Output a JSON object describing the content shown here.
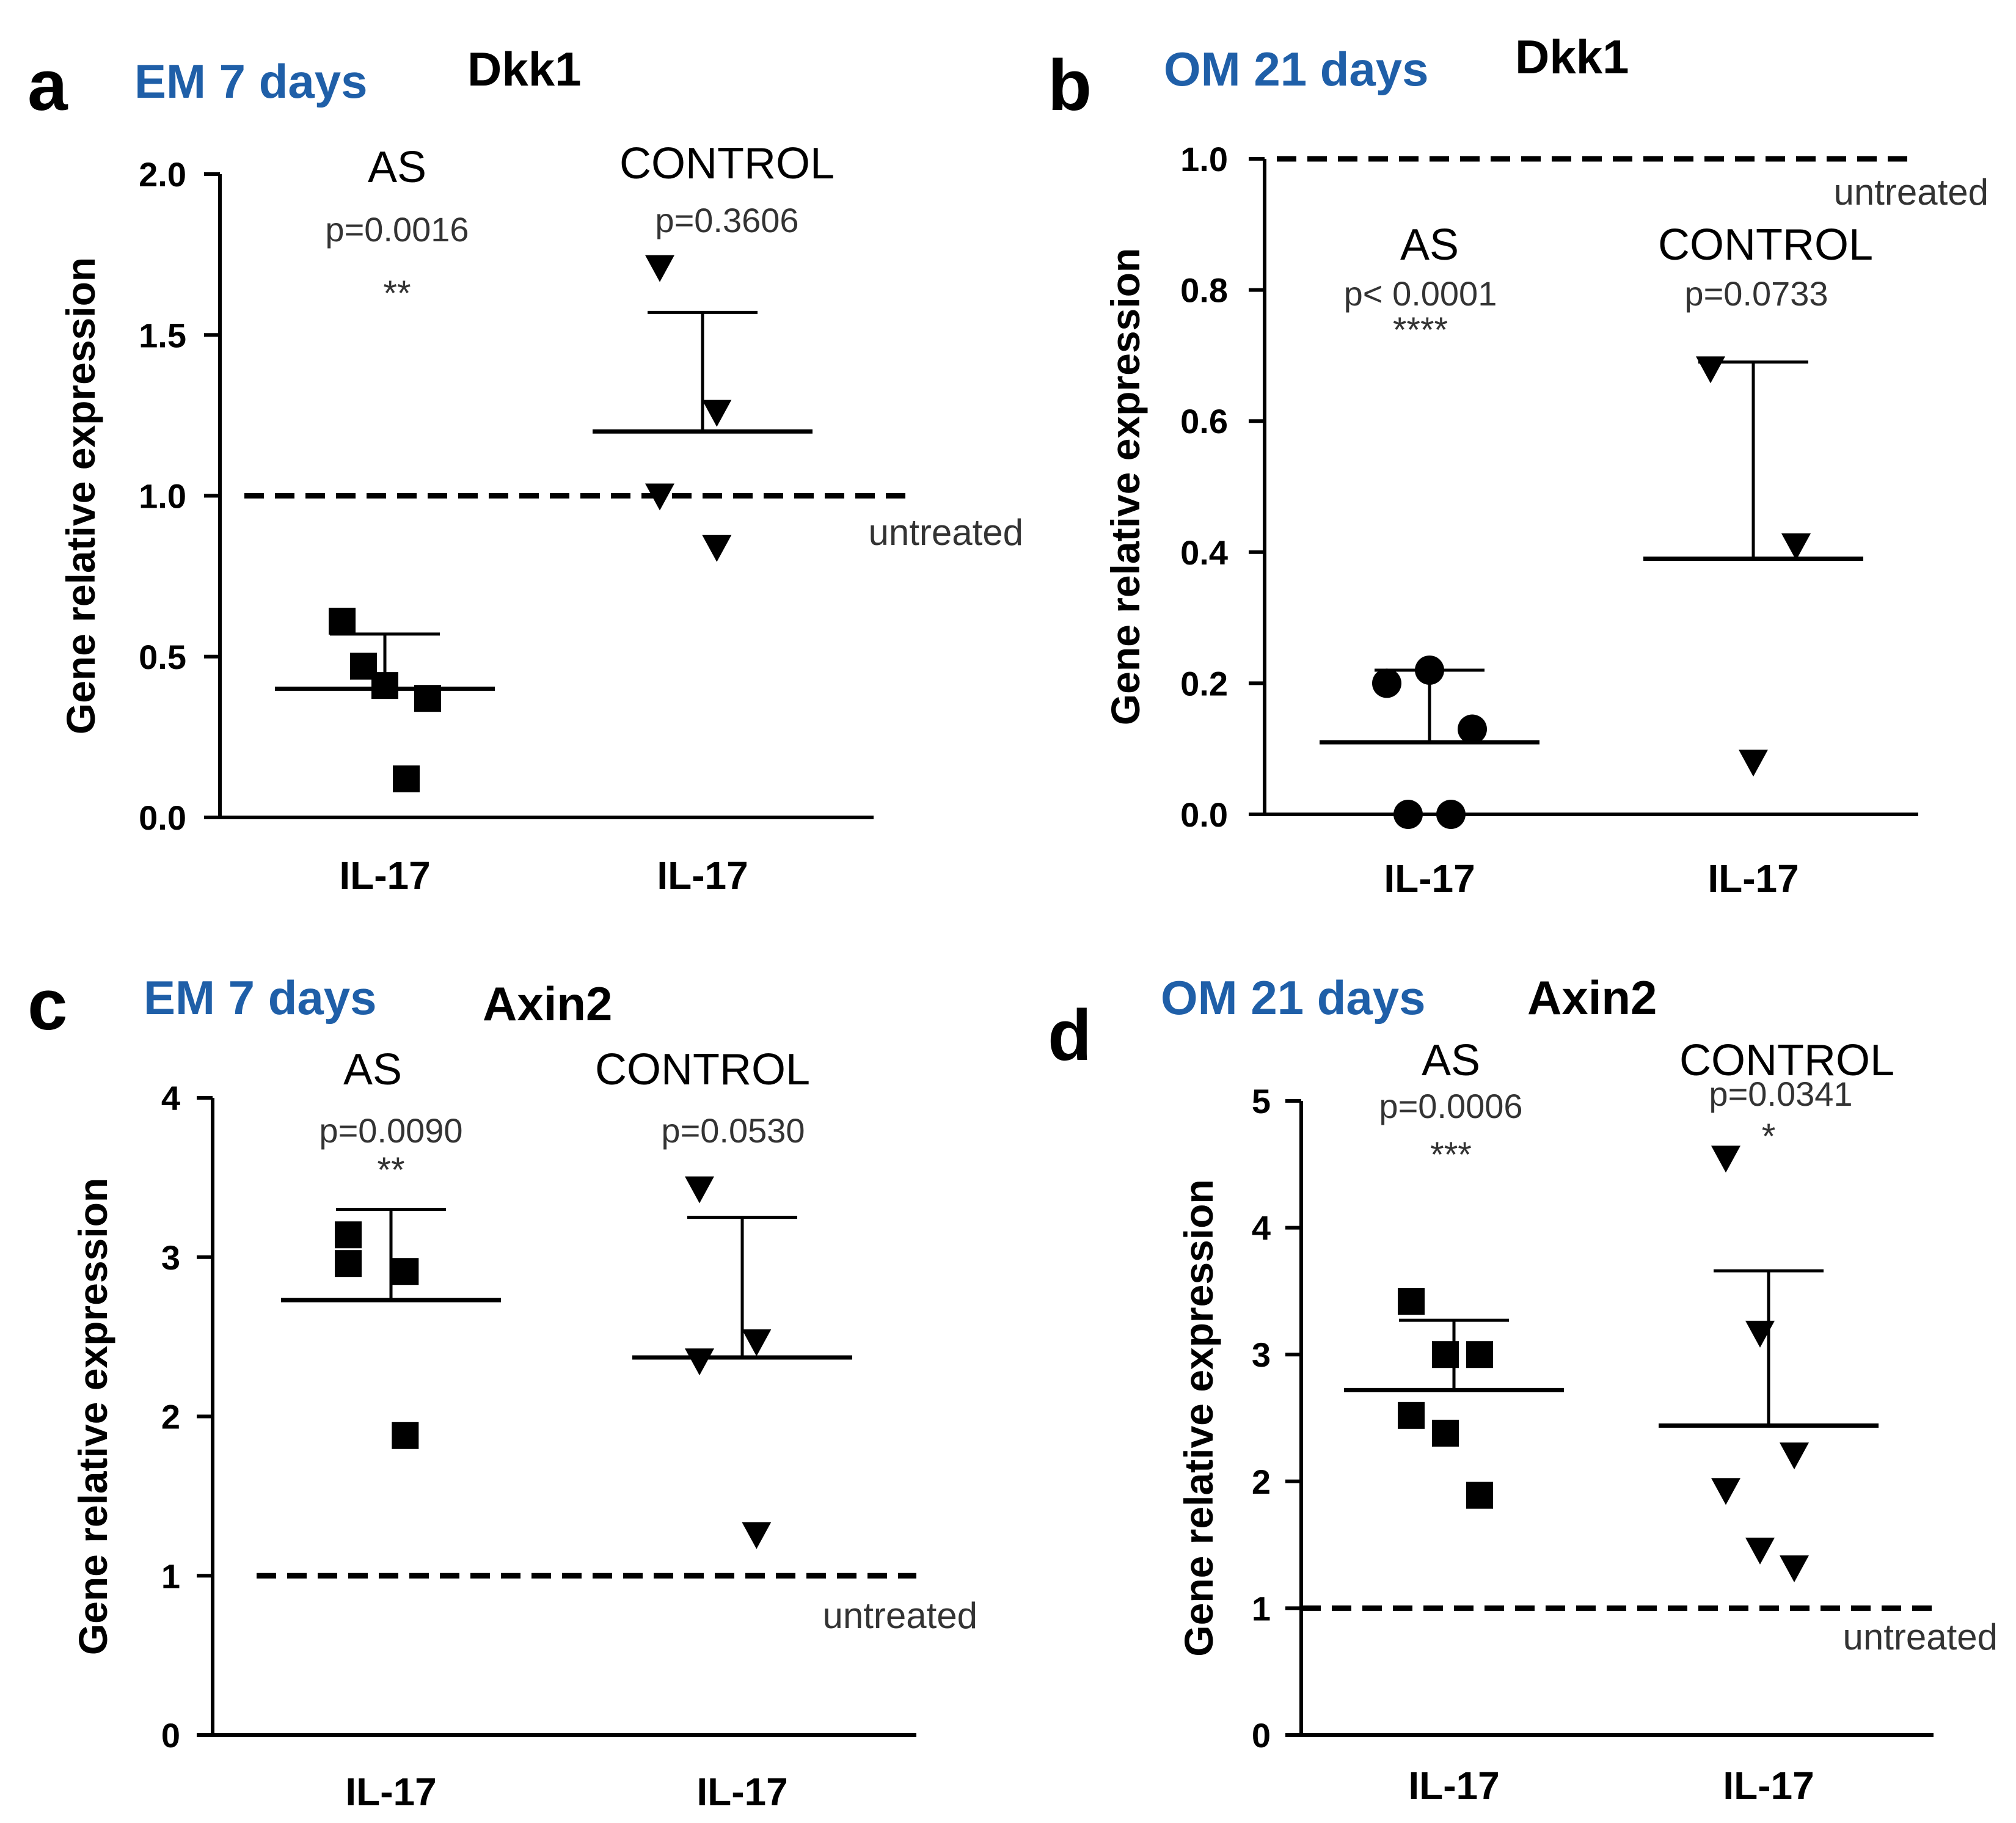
{
  "colors": {
    "condition_title": "#1F5FA8",
    "ink": "#000000"
  },
  "chart_data": [
    {
      "type": "scatter",
      "panel": "a",
      "condition": "EM 7 days",
      "gene": "Dkk1",
      "ylabel": "Gene relative expression",
      "ylim": [
        0,
        2
      ],
      "yticks": [
        "0.0",
        "0.5",
        "1.0",
        "1.5",
        "2.0"
      ],
      "ytick_values": [
        0,
        0.5,
        1.0,
        1.5,
        2.0
      ],
      "reference_line": {
        "value": 1.0,
        "label": "untreated"
      },
      "groups": [
        {
          "name": "AS",
          "xlabel": "IL-17",
          "pvalue": "p=0.0016",
          "stars": "**",
          "marker": "square",
          "points": [
            0.61,
            0.41,
            0.37,
            0.47,
            0.12
          ],
          "mean": 0.4,
          "error_top": 0.57
        },
        {
          "name": "CONTROL",
          "xlabel": "IL-17",
          "pvalue": "p=0.3606",
          "stars": "",
          "marker": "triangle",
          "points": [
            1.71,
            1.26,
            1.0,
            0.84
          ],
          "mean": 1.2,
          "error_top": 1.57
        }
      ]
    },
    {
      "type": "scatter",
      "panel": "b",
      "condition": "OM 21 days",
      "gene": "Dkk1",
      "ylabel": "Gene relative expression",
      "ylim": [
        0,
        1
      ],
      "yticks": [
        "0.0",
        "0.2",
        "0.4",
        "0.6",
        "0.8",
        "1.0"
      ],
      "ytick_values": [
        0,
        0.2,
        0.4,
        0.6,
        0.8,
        1.0
      ],
      "reference_line": {
        "value": 1.0,
        "label": "untreated"
      },
      "groups": [
        {
          "name": "AS",
          "xlabel": "IL-17",
          "pvalue": "p< 0.0001",
          "stars": "****",
          "marker": "circle",
          "points": [
            0.2,
            0.22,
            0.13,
            0.0,
            0.0
          ],
          "mean": 0.11,
          "error_top": 0.22
        },
        {
          "name": "CONTROL",
          "xlabel": "IL-17",
          "pvalue": "p=0.0733",
          "stars": "",
          "marker": "triangle",
          "points": [
            0.68,
            0.41,
            0.08
          ],
          "mean": 0.39,
          "error_top": 0.69
        }
      ]
    },
    {
      "type": "scatter",
      "panel": "c",
      "condition": "EM 7 days",
      "gene": "Axin2",
      "ylabel": "Gene relative expression",
      "ylim": [
        0,
        4
      ],
      "yticks": [
        "0",
        "1",
        "2",
        "3",
        "4"
      ],
      "ytick_values": [
        0,
        1,
        2,
        3,
        4
      ],
      "reference_line": {
        "value": 1.0,
        "label": "untreated"
      },
      "groups": [
        {
          "name": "AS",
          "xlabel": "IL-17",
          "pvalue": "p=0.0090",
          "stars": "**",
          "marker": "square",
          "points": [
            2.96,
            2.91,
            3.14,
            1.88
          ],
          "mean": 2.73,
          "error_top": 3.3
        },
        {
          "name": "CONTROL",
          "xlabel": "IL-17",
          "pvalue": "p=0.0530",
          "stars": "",
          "marker": "triangle",
          "points": [
            3.43,
            2.47,
            2.35,
            1.26
          ],
          "mean": 2.37,
          "error_top": 3.25
        }
      ]
    },
    {
      "type": "scatter",
      "panel": "d",
      "condition": "OM 21 days",
      "gene": "Axin2",
      "ylabel": "Gene relative expression",
      "ylim": [
        0,
        5
      ],
      "yticks": [
        "0",
        "1",
        "2",
        "3",
        "4",
        "5"
      ],
      "ytick_values": [
        0,
        1,
        2,
        3,
        4,
        5
      ],
      "reference_line": {
        "value": 1.0,
        "label": "untreated"
      },
      "groups": [
        {
          "name": "AS",
          "xlabel": "IL-17",
          "pvalue": "p=0.0006",
          "stars": "***",
          "marker": "square",
          "points": [
            3.42,
            3.0,
            3.0,
            2.52,
            2.38,
            1.89
          ],
          "mean": 2.72,
          "error_top": 3.27
        },
        {
          "name": "CONTROL",
          "xlabel": "IL-17",
          "pvalue": "p=0.0341",
          "stars": "*",
          "marker": "triangle",
          "points": [
            4.55,
            3.17,
            2.21,
            1.93,
            1.46,
            1.32
          ],
          "mean": 2.44,
          "error_top": 3.66
        }
      ]
    }
  ]
}
